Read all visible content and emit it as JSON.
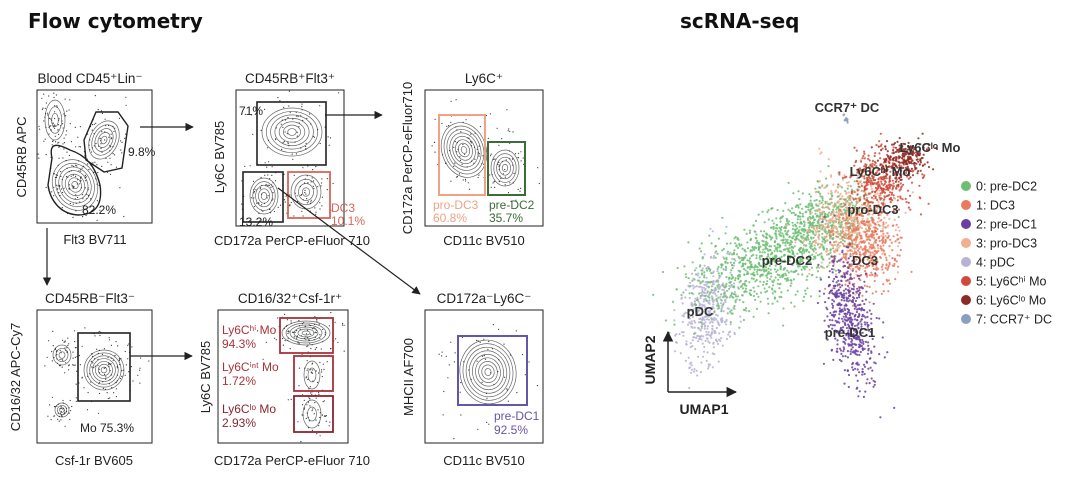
{
  "sections": {
    "left_title": "Flow cytometry",
    "right_title": "scRNA-seq"
  },
  "colors": {
    "pre_dc2": "#6dbe73",
    "dc3": "#e97a5f",
    "pre_dc1": "#6a3fa0",
    "pro_dc3": "#f2ae8f",
    "pdc": "#b7b3d3",
    "ly6c_hi_mo": "#cf4a3a",
    "ly6c_lo_mo": "#8c2a25",
    "ccr7_dc": "#8a9ec0",
    "gate_black": "#222222",
    "gate_dc3": "#d4675b",
    "gate_pro": "#eea386",
    "gate_pre2": "#3d6b3a",
    "gate_pre1": "#6655a8",
    "gate_mo": "#a8333b"
  },
  "panels": {
    "p1": {
      "title": "Blood CD45⁺Lin⁻",
      "ylabel": "CD45RB APC",
      "xlabel": "Flt3 BV711",
      "gates": [
        {
          "label": "9.8%"
        },
        {
          "label": "82.2%"
        }
      ]
    },
    "p2": {
      "title": "CD45RB⁺Flt3⁺",
      "ylabel": "Ly6C BV785",
      "xlabel": "CD172a PerCP-eFluor 710",
      "gates": [
        {
          "label": "71%"
        },
        {
          "label": "13.2%"
        },
        {
          "label": "DC3",
          "value": "10.1%"
        }
      ]
    },
    "p3": {
      "title": "Ly6C⁺",
      "ylabel": "CD172a PerCP-eFluor710",
      "xlabel": "CD11c BV510",
      "gates": [
        {
          "label": "pro-DC3",
          "value": "60.8%"
        },
        {
          "label": "pre-DC2",
          "value": "35.7%"
        }
      ]
    },
    "p4": {
      "title": "CD45RB⁻Flt3⁻",
      "ylabel": "CD16/32 APC-Cy7",
      "xlabel": "Csf-1r BV605",
      "gates": [
        {
          "label": "Mo 75.3%"
        }
      ]
    },
    "p5": {
      "title": "CD16/32⁺Csf-1r⁺",
      "ylabel": "Ly6C BV785",
      "xlabel": "CD172a PerCP-eFluor 710",
      "gates": [
        {
          "label": "Ly6Cʰⁱ Mo",
          "value": "94.3%"
        },
        {
          "label": "Ly6Cⁱⁿᵗ Mo",
          "value": "1.72%"
        },
        {
          "label": "Ly6Cˡᵒ Mo",
          "value": "2.93%"
        }
      ]
    },
    "p6": {
      "title": "CD172a⁻Ly6C⁻",
      "ylabel": "MHCII AF700",
      "xlabel": "CD11c BV510",
      "gates": [
        {
          "label": "pre-DC1",
          "value": "92.5%"
        }
      ]
    }
  },
  "umap": {
    "xlabel": "UMAP1",
    "ylabel": "UMAP2",
    "cluster_labels": {
      "ccr7": "CCR7⁺ DC",
      "ly6c_lo": "Ly6Cˡᵒ Mo",
      "ly6c_hi": "Ly6Cʰⁱ Mo",
      "pro_dc3": "pro-DC3",
      "pre_dc2": "pre-DC2",
      "dc3": "DC3",
      "pdc": "pDC",
      "pre_dc1": "pre-DC1"
    },
    "legend": [
      {
        "label": "0: pre-DC2",
        "color": "#6dbe73"
      },
      {
        "label": "1: DC3",
        "color": "#e97a5f"
      },
      {
        "label": "2: pre-DC1",
        "color": "#6a3fa0"
      },
      {
        "label": "3: pro-DC3",
        "color": "#f2ae8f"
      },
      {
        "label": "4: pDC",
        "color": "#b7b3d3"
      },
      {
        "label": "5: Ly6Cʰⁱ Mo",
        "color": "#cf4a3a"
      },
      {
        "label": "6: Ly6Cˡᵒ Mo",
        "color": "#8c2a25"
      },
      {
        "label": "7: CCR7⁺ DC",
        "color": "#8a9ec0"
      }
    ]
  }
}
